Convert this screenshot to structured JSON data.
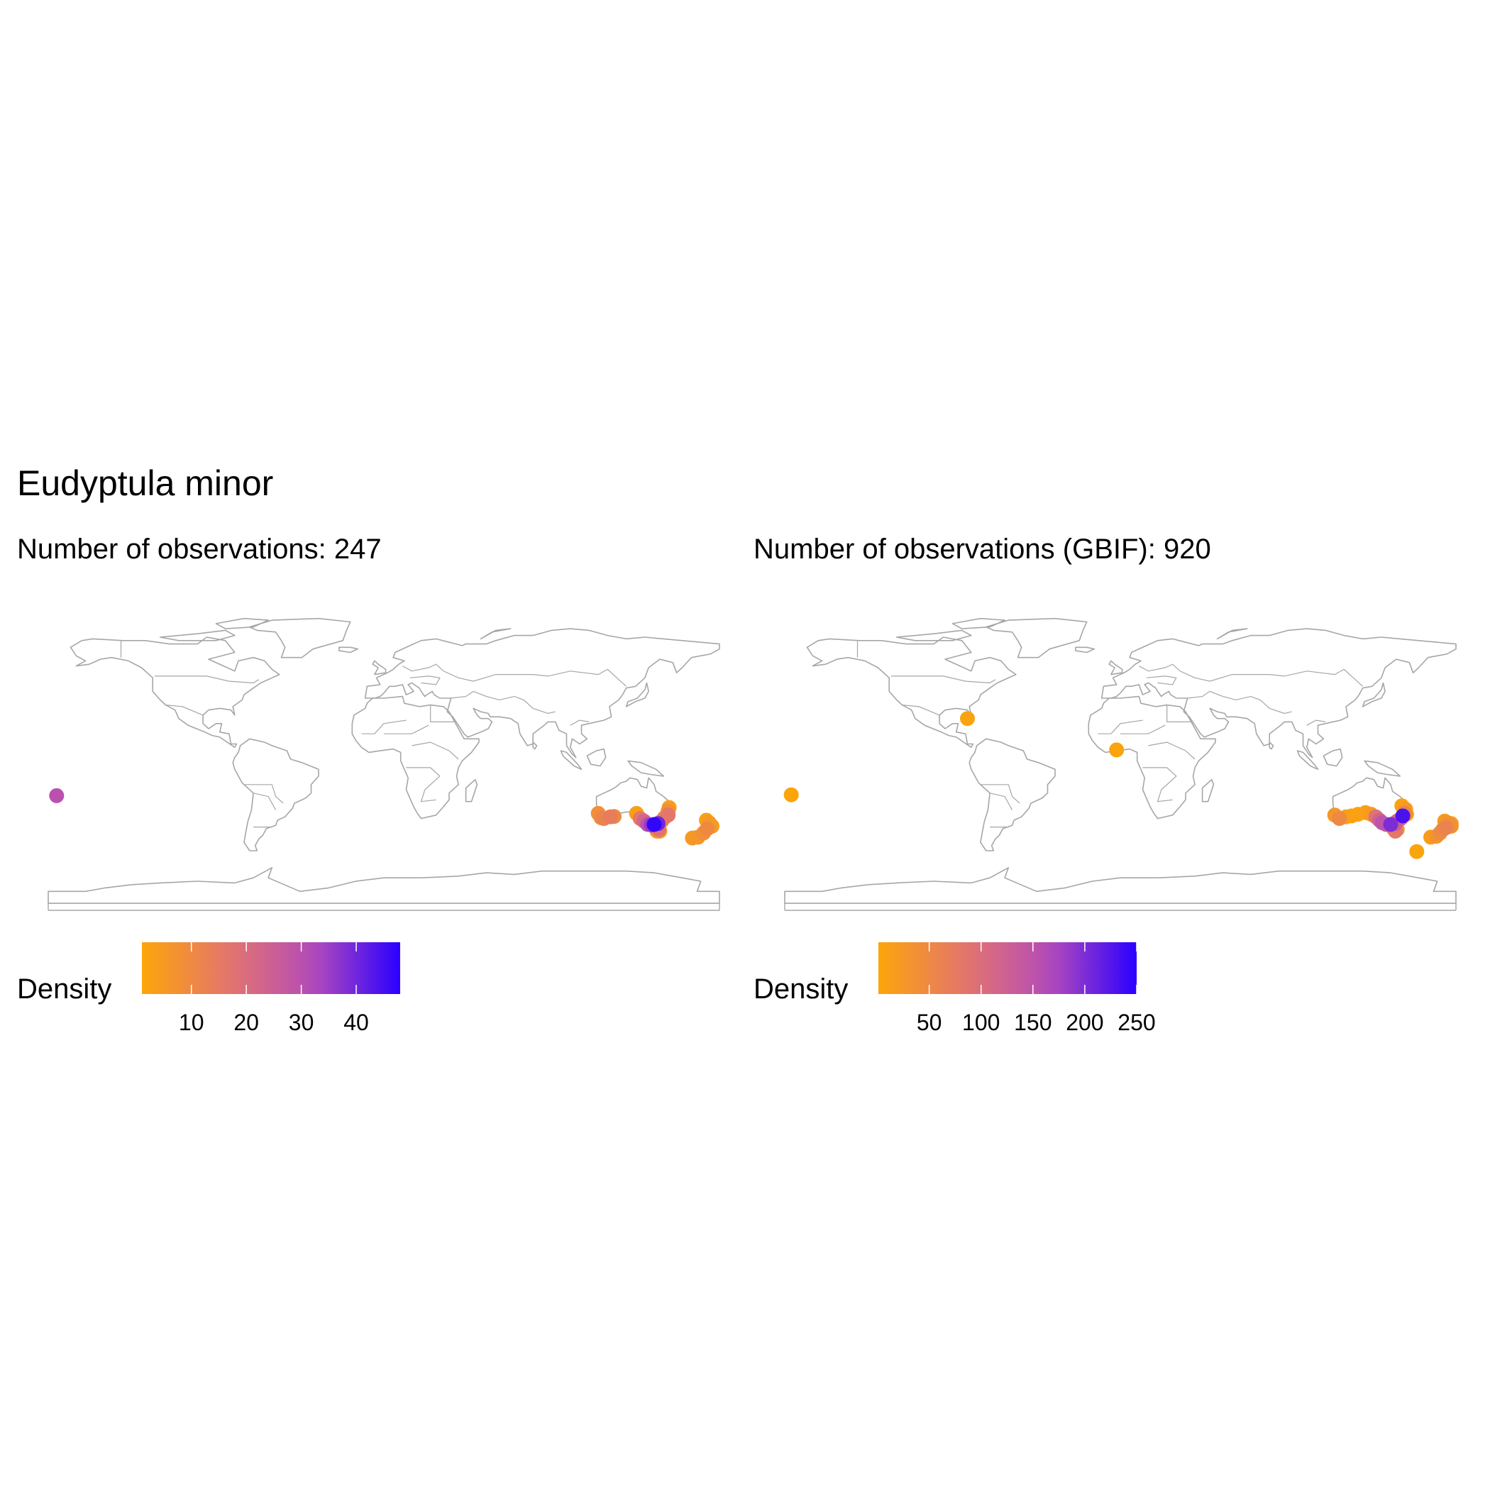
{
  "title": "Eudyptula minor",
  "colors": {
    "land_outline": "#a6a6a6",
    "density_low": "#fca50a",
    "density_mid": "#e4756c",
    "density_mid2": "#b44bba",
    "density_high": "#2b00ff"
  },
  "chart_data": [
    {
      "type": "scatter",
      "subtitle": "Number of observations:  247",
      "legend": {
        "title": "Density",
        "placement": "bottom-left",
        "ticks": [
          "10",
          "20",
          "30",
          "40"
        ],
        "range": [
          1,
          48
        ]
      },
      "xlim": [
        -180,
        180
      ],
      "ylim": [
        -90,
        90
      ],
      "points": [
        {
          "lon": -175.5,
          "lat": -21.5,
          "density": 30
        },
        {
          "lon": 115.0,
          "lat": -32.0,
          "density": 8
        },
        {
          "lon": 116.5,
          "lat": -34.5,
          "density": 10
        },
        {
          "lon": 118.0,
          "lat": -35.0,
          "density": 12
        },
        {
          "lon": 121.5,
          "lat": -34.0,
          "density": 14
        },
        {
          "lon": 123.5,
          "lat": -33.8,
          "density": 10
        },
        {
          "lon": 135.5,
          "lat": -32.0,
          "density": 3
        },
        {
          "lon": 137.5,
          "lat": -35.0,
          "density": 16
        },
        {
          "lon": 139.5,
          "lat": -36.5,
          "density": 22
        },
        {
          "lon": 141.5,
          "lat": -38.5,
          "density": 30
        },
        {
          "lon": 143.5,
          "lat": -38.8,
          "density": 36
        },
        {
          "lon": 145.0,
          "lat": -38.5,
          "density": 47
        },
        {
          "lon": 147.0,
          "lat": -38.0,
          "density": 40
        },
        {
          "lon": 147.5,
          "lat": -41.5,
          "density": 18
        },
        {
          "lon": 146.5,
          "lat": -42.5,
          "density": 6
        },
        {
          "lon": 148.0,
          "lat": -42.5,
          "density": 4
        },
        {
          "lon": 149.0,
          "lat": -36.5,
          "density": 14
        },
        {
          "lon": 150.5,
          "lat": -34.5,
          "density": 10
        },
        {
          "lon": 152.5,
          "lat": -30.5,
          "density": 8
        },
        {
          "lon": 153.0,
          "lat": -28.5,
          "density": 3
        },
        {
          "lon": 152.5,
          "lat": -33.0,
          "density": 16
        },
        {
          "lon": 165.5,
          "lat": -46.5,
          "density": 5
        },
        {
          "lon": 168.5,
          "lat": -46.0,
          "density": 6
        },
        {
          "lon": 171.5,
          "lat": -43.5,
          "density": 8
        },
        {
          "lon": 173.5,
          "lat": -41.0,
          "density": 10
        },
        {
          "lon": 174.5,
          "lat": -37.5,
          "density": 5
        },
        {
          "lon": 176.0,
          "lat": -39.5,
          "density": 4
        },
        {
          "lon": 173.0,
          "lat": -36.0,
          "density": 3
        }
      ]
    },
    {
      "type": "scatter",
      "subtitle": "Number of observations (GBIF): 920",
      "legend": {
        "title": "Density",
        "placement": "bottom-left",
        "ticks": [
          "50",
          "100",
          "150",
          "200",
          "250"
        ],
        "range": [
          1,
          250
        ]
      },
      "xlim": [
        -180,
        180
      ],
      "ylim": [
        -90,
        90
      ],
      "points": [
        {
          "lon": -176.5,
          "lat": -21.0,
          "density": 2
        },
        {
          "lon": -82.0,
          "lat": 24.0,
          "density": 6
        },
        {
          "lon": -2.0,
          "lat": 5.5,
          "density": 2
        },
        {
          "lon": 115.0,
          "lat": -33.0,
          "density": 25
        },
        {
          "lon": 117.5,
          "lat": -35.0,
          "density": 50
        },
        {
          "lon": 121.0,
          "lat": -34.0,
          "density": 10
        },
        {
          "lon": 124.0,
          "lat": -33.5,
          "density": 8
        },
        {
          "lon": 127.5,
          "lat": -32.5,
          "density": 6
        },
        {
          "lon": 131.5,
          "lat": -31.5,
          "density": 10
        },
        {
          "lon": 134.5,
          "lat": -32.5,
          "density": 20
        },
        {
          "lon": 137.0,
          "lat": -34.0,
          "density": 90
        },
        {
          "lon": 139.0,
          "lat": -36.0,
          "density": 120
        },
        {
          "lon": 140.5,
          "lat": -37.5,
          "density": 150
        },
        {
          "lon": 142.5,
          "lat": -38.5,
          "density": 140
        },
        {
          "lon": 145.0,
          "lat": -38.5,
          "density": 200
        },
        {
          "lon": 147.5,
          "lat": -38.0,
          "density": 130
        },
        {
          "lon": 146.5,
          "lat": -41.0,
          "density": 60
        },
        {
          "lon": 147.5,
          "lat": -42.5,
          "density": 80
        },
        {
          "lon": 148.5,
          "lat": -41.5,
          "density": 40
        },
        {
          "lon": 148.5,
          "lat": -36.5,
          "density": 110
        },
        {
          "lon": 150.5,
          "lat": -35.0,
          "density": 90
        },
        {
          "lon": 151.5,
          "lat": -33.5,
          "density": 230
        },
        {
          "lon": 152.5,
          "lat": -32.0,
          "density": 60
        },
        {
          "lon": 153.0,
          "lat": -29.5,
          "density": 20
        },
        {
          "lon": 151.0,
          "lat": -27.5,
          "density": 8
        },
        {
          "lon": 153.5,
          "lat": -32.5,
          "density": 12
        },
        {
          "lon": 166.5,
          "lat": -46.0,
          "density": 15
        },
        {
          "lon": 169.5,
          "lat": -45.5,
          "density": 30
        },
        {
          "lon": 171.5,
          "lat": -43.5,
          "density": 45
        },
        {
          "lon": 173.0,
          "lat": -41.5,
          "density": 50
        },
        {
          "lon": 174.5,
          "lat": -40.5,
          "density": 60
        },
        {
          "lon": 175.5,
          "lat": -37.5,
          "density": 30
        },
        {
          "lon": 176.5,
          "lat": -39.0,
          "density": 40
        },
        {
          "lon": 177.5,
          "lat": -39.5,
          "density": 25
        },
        {
          "lon": 174.0,
          "lat": -36.5,
          "density": 20
        },
        {
          "lon": 177.5,
          "lat": -38.0,
          "density": 15
        },
        {
          "lon": 159.0,
          "lat": -54.5,
          "density": 2
        }
      ]
    }
  ]
}
